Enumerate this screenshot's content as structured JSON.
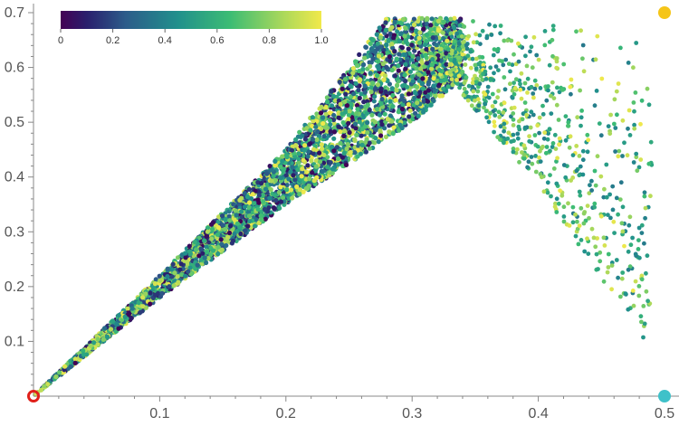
{
  "chart_data": {
    "type": "scatter",
    "title": "",
    "xlabel": "",
    "ylabel": "",
    "xlim": [
      0,
      0.5
    ],
    "ylim": [
      0,
      0.7
    ],
    "x_ticks": [
      0.1,
      0.2,
      0.3,
      0.4,
      0.5
    ],
    "x_tick_labels": [
      "0.1",
      "0.2",
      "0.3",
      "0.4",
      "0.5"
    ],
    "y_ticks": [
      0.1,
      0.2,
      0.3,
      0.4,
      0.5,
      0.6,
      0.7
    ],
    "y_tick_labels": [
      "0.1",
      "0.2",
      "0.3",
      "0.4",
      "0.5",
      "0.6",
      "0.7"
    ],
    "grid": false,
    "colormap": "viridis",
    "colorbar": {
      "placement": "top-left",
      "range": [
        0,
        1
      ],
      "ticks": [
        0,
        0.2,
        0.4,
        0.6,
        0.8,
        1.0
      ],
      "tick_labels": [
        "0",
        "0.2",
        "0.4",
        "0.6",
        "0.8",
        "1.0"
      ]
    },
    "point_cloud": {
      "description_region": "wedge from origin widening to x≈0.34, plus sparse branch descending to x≈0.48",
      "wedge_upper_boundary": [
        [
          0,
          0
        ],
        [
          0.1,
          0.22
        ],
        [
          0.2,
          0.45
        ],
        [
          0.28,
          0.69
        ],
        [
          0.34,
          0.69
        ]
      ],
      "wedge_lower_boundary": [
        [
          0,
          0
        ],
        [
          0.1,
          0.18
        ],
        [
          0.2,
          0.35
        ],
        [
          0.3,
          0.5
        ],
        [
          0.34,
          0.58
        ]
      ],
      "branch_upper": [
        [
          0.34,
          0.69
        ],
        [
          0.42,
          0.68
        ],
        [
          0.47,
          0.68
        ]
      ],
      "branch_lower": [
        [
          0.33,
          0.58
        ],
        [
          0.4,
          0.38
        ],
        [
          0.46,
          0.18
        ],
        [
          0.49,
          0.08
        ]
      ],
      "color_value_range": [
        0,
        1
      ]
    },
    "markers": [
      {
        "name": "origin",
        "x": 0,
        "y": 0,
        "color": "#e0201a",
        "style": "ring"
      },
      {
        "name": "top-right",
        "x": 0.5,
        "y": 0.7,
        "color": "#f5c518",
        "style": "filled"
      },
      {
        "name": "bottom-right",
        "x": 0.5,
        "y": 0,
        "color": "#3fc1c9",
        "style": "filled"
      }
    ]
  }
}
